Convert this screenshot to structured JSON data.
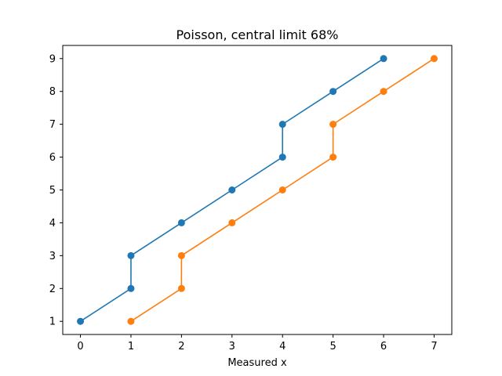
{
  "chart_data": {
    "type": "line",
    "title": "Poisson, central limit 68%",
    "xlabel": "Measured x",
    "ylabel": "",
    "xlim": [
      -0.35,
      7.35
    ],
    "ylim": [
      0.6,
      9.4
    ],
    "xticks": [
      0,
      1,
      2,
      3,
      4,
      5,
      6,
      7
    ],
    "yticks": [
      1,
      2,
      3,
      4,
      5,
      6,
      7,
      8,
      9
    ],
    "grid": false,
    "legend": "none",
    "series": [
      {
        "color": "#1f77b4",
        "points": [
          [
            0,
            1
          ],
          [
            1,
            2
          ],
          [
            1,
            3
          ],
          [
            2,
            4
          ],
          [
            3,
            5
          ],
          [
            4,
            6
          ],
          [
            4,
            7
          ],
          [
            5,
            8
          ],
          [
            6,
            9
          ]
        ]
      },
      {
        "color": "#ff7f0e",
        "points": [
          [
            1,
            1
          ],
          [
            2,
            2
          ],
          [
            2,
            3
          ],
          [
            3,
            4
          ],
          [
            4,
            5
          ],
          [
            5,
            6
          ],
          [
            5,
            7
          ],
          [
            6,
            8
          ],
          [
            7,
            9
          ]
        ]
      }
    ]
  }
}
